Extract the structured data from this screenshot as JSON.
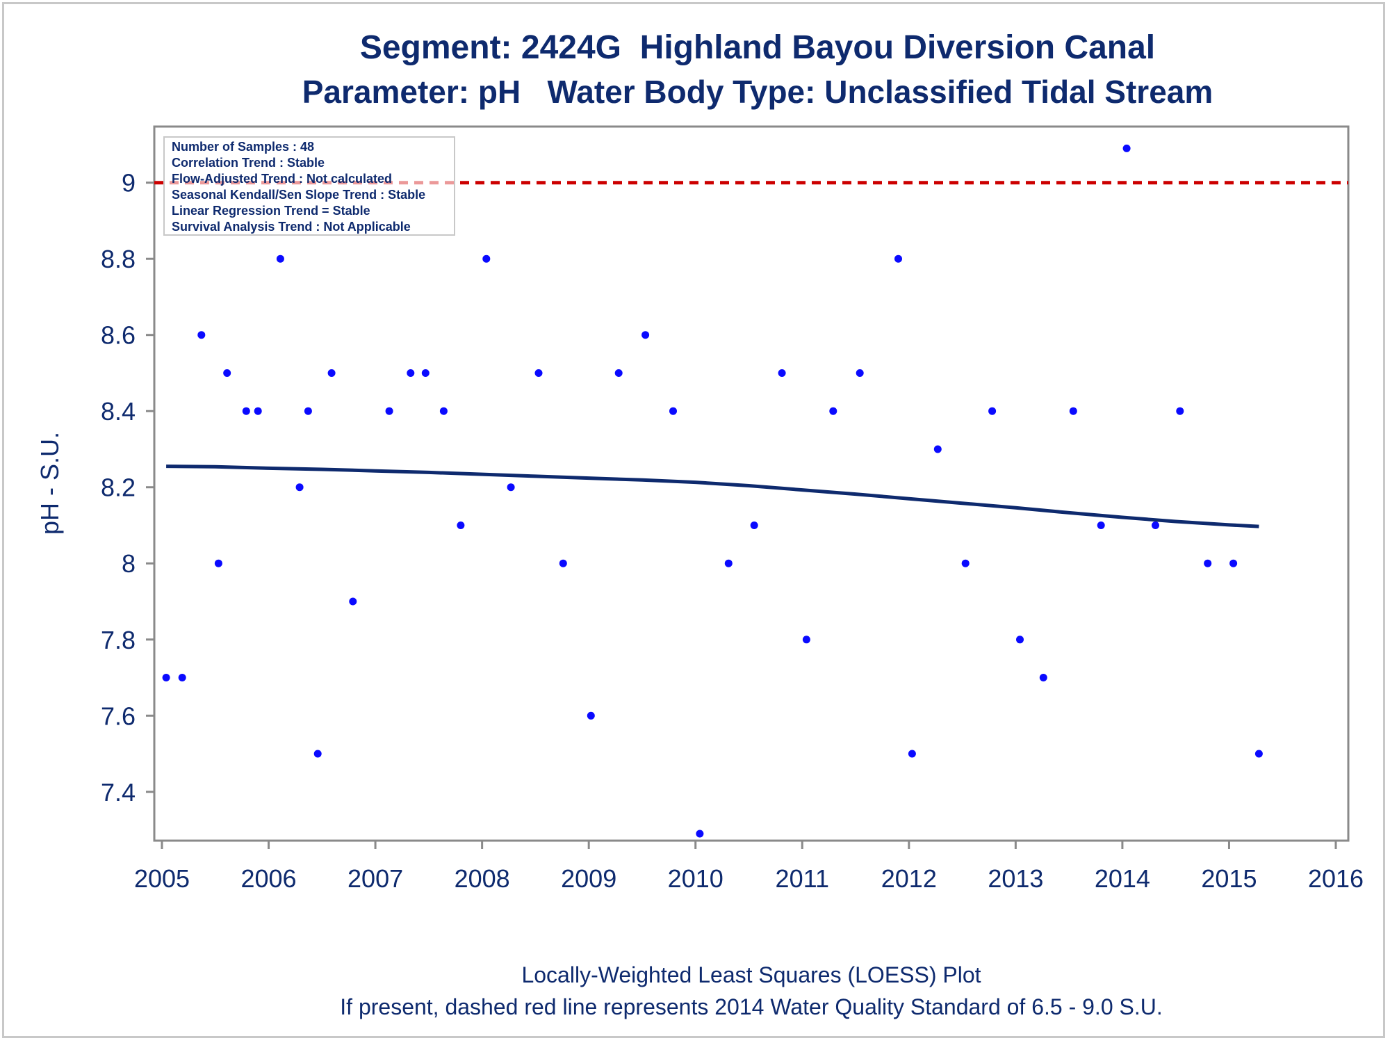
{
  "chart_data": {
    "type": "scatter",
    "title": "Segment: 2424G  Highland Bayou Diversion Canal",
    "subtitle": "Parameter: pH   Water Body Type: Unclassified Tidal Stream",
    "xlabel": "",
    "ylabel": "pH - S.U.",
    "xlim": [
      2005,
      2016
    ],
    "ylim": [
      7.29,
      9.12
    ],
    "x_ticks": [
      "2005",
      "2006",
      "2007",
      "2008",
      "2009",
      "2010",
      "2011",
      "2012",
      "2013",
      "2014",
      "2015",
      "2016"
    ],
    "y_ticks": [
      "7.4",
      "7.6",
      "7.8",
      "8",
      "8.2",
      "8.4",
      "8.6",
      "8.8",
      "9"
    ],
    "grid": false,
    "standard_line": {
      "y": 9.0,
      "style": "dashed",
      "color": "#cc0000"
    },
    "series": [
      {
        "type": "scatter",
        "color": "#0a0aff",
        "points": [
          [
            2005.04,
            7.7
          ],
          [
            2005.19,
            7.7
          ],
          [
            2005.37,
            8.6
          ],
          [
            2005.53,
            8.0
          ],
          [
            2005.61,
            8.5
          ],
          [
            2005.79,
            8.4
          ],
          [
            2005.9,
            8.4
          ],
          [
            2006.11,
            8.8
          ],
          [
            2006.29,
            8.2
          ],
          [
            2006.37,
            8.4
          ],
          [
            2006.46,
            7.5
          ],
          [
            2006.59,
            8.5
          ],
          [
            2006.79,
            7.9
          ],
          [
            2007.13,
            8.4
          ],
          [
            2007.33,
            8.5
          ],
          [
            2007.47,
            8.5
          ],
          [
            2007.64,
            8.4
          ],
          [
            2007.8,
            8.1
          ],
          [
            2008.04,
            8.8
          ],
          [
            2008.27,
            8.2
          ],
          [
            2008.53,
            8.5
          ],
          [
            2008.76,
            8.0
          ],
          [
            2009.02,
            7.6
          ],
          [
            2009.28,
            8.5
          ],
          [
            2009.53,
            8.6
          ],
          [
            2009.79,
            8.4
          ],
          [
            2010.04,
            7.29
          ],
          [
            2010.31,
            8.0
          ],
          [
            2010.55,
            8.1
          ],
          [
            2010.81,
            8.5
          ],
          [
            2011.04,
            7.8
          ],
          [
            2011.29,
            8.4
          ],
          [
            2011.54,
            8.5
          ],
          [
            2011.9,
            8.8
          ],
          [
            2012.03,
            7.5
          ],
          [
            2012.27,
            8.3
          ],
          [
            2012.53,
            8.0
          ],
          [
            2012.78,
            8.4
          ],
          [
            2013.04,
            7.8
          ],
          [
            2013.26,
            7.7
          ],
          [
            2013.54,
            8.4
          ],
          [
            2013.8,
            8.1
          ],
          [
            2014.04,
            9.09
          ],
          [
            2014.31,
            8.1
          ],
          [
            2014.54,
            8.4
          ],
          [
            2014.8,
            8.0
          ],
          [
            2015.04,
            8.0
          ],
          [
            2015.28,
            7.5
          ]
        ]
      },
      {
        "type": "line",
        "color": "#0e2a6e",
        "points": [
          [
            2005.04,
            8.255
          ],
          [
            2005.5,
            8.254
          ],
          [
            2006.0,
            8.25
          ],
          [
            2006.5,
            8.247
          ],
          [
            2007.0,
            8.243
          ],
          [
            2007.5,
            8.239
          ],
          [
            2008.0,
            8.234
          ],
          [
            2008.5,
            8.229
          ],
          [
            2009.0,
            8.224
          ],
          [
            2009.5,
            8.219
          ],
          [
            2010.0,
            8.213
          ],
          [
            2010.5,
            8.204
          ],
          [
            2011.0,
            8.193
          ],
          [
            2011.5,
            8.182
          ],
          [
            2012.0,
            8.17
          ],
          [
            2012.5,
            8.158
          ],
          [
            2013.0,
            8.146
          ],
          [
            2013.5,
            8.133
          ],
          [
            2014.0,
            8.121
          ],
          [
            2014.5,
            8.11
          ],
          [
            2015.0,
            8.101
          ],
          [
            2015.28,
            8.097
          ]
        ]
      }
    ],
    "info_box": [
      "Number of Samples : 48",
      "Correlation Trend : Stable",
      "Flow-Adjusted Trend : Not calculated",
      "Seasonal Kendall/Sen Slope Trend : Stable",
      "Linear Regression Trend = Stable",
      "Survival Analysis Trend : Not Applicable"
    ],
    "footnotes": [
      "Locally-Weighted Least Squares (LOESS) Plot",
      "If present, dashed red line represents 2014 Water Quality Standard of 6.5 - 9.0 S.U."
    ]
  }
}
